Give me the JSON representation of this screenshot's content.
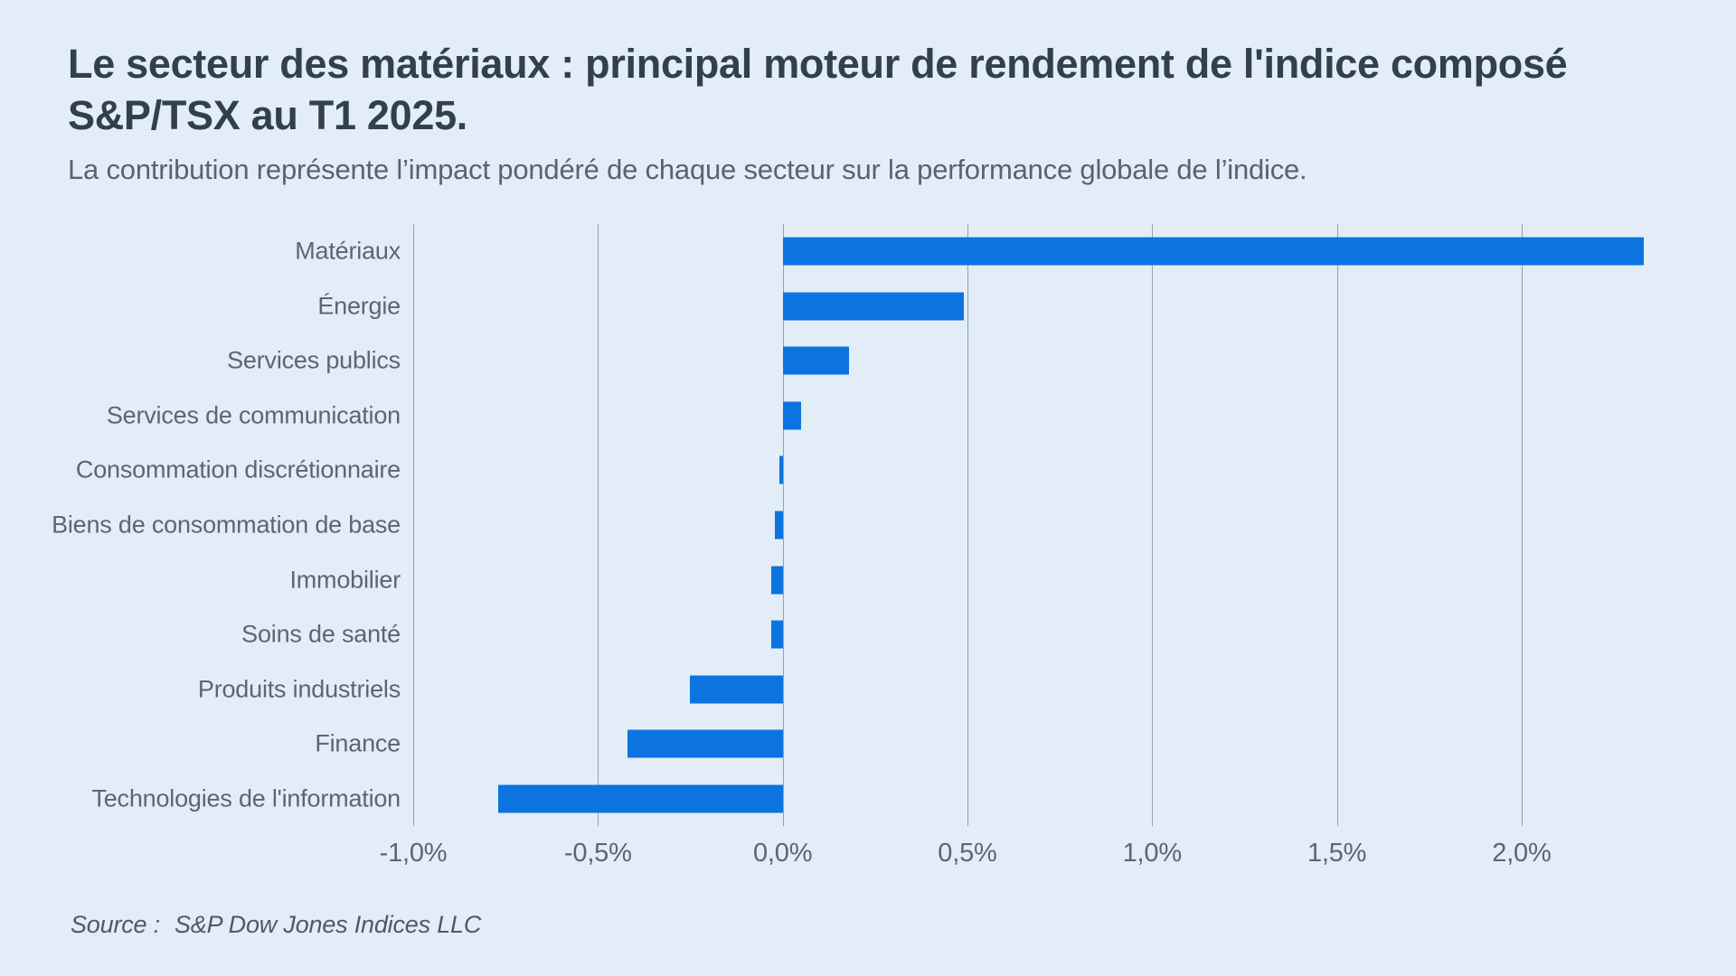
{
  "page": {
    "background_color": "#e3edf8"
  },
  "header": {
    "title_lines": [
      "Le secteur des matériaux : principal moteur de rendement de l'indice composé",
      "S&P/TSX au T1 2025."
    ],
    "subtitle": "La contribution représente l’impact pondéré de chaque secteur sur la performance globale de l’indice."
  },
  "footer": {
    "source_label": "Source :",
    "source_value": "S&P Dow Jones Indices LLC"
  },
  "chart_data": {
    "type": "bar",
    "orientation": "horizontal",
    "title": "Le secteur des matériaux : principal moteur de rendement de l'indice composé S&P/TSX au T1 2025.",
    "subtitle": "La contribution représente l’impact pondéré de chaque secteur sur la performance globale de l’indice.",
    "unit": "%",
    "categories": [
      "Matériaux",
      "Énergie",
      "Services publics",
      "Services de communication",
      "Consommation discrétionnaire",
      "Biens de consommation de base",
      "Immobilier",
      "Soins de santé",
      "Produits industriels",
      "Finance",
      "Technologies de l'information"
    ],
    "values": [
      2.33,
      0.49,
      0.18,
      0.05,
      -0.01,
      -0.02,
      -0.03,
      -0.03,
      -0.25,
      -0.42,
      -0.77
    ],
    "x_ticks": [
      {
        "value": -1.0,
        "label": "-1,0%"
      },
      {
        "value": -0.5,
        "label": "-0,5%"
      },
      {
        "value": 0.0,
        "label": "0,0%"
      },
      {
        "value": 0.5,
        "label": "0,5%"
      },
      {
        "value": 1.0,
        "label": "1,0%"
      },
      {
        "value": 1.5,
        "label": "1,5%"
      },
      {
        "value": 2.0,
        "label": "2,0%"
      }
    ],
    "xlim": [
      -1.0,
      2.47
    ],
    "grid": "vertical-only",
    "legend": "none",
    "bar_color": "#0b74e0",
    "gridline_color": "#98a0a8",
    "source": "S&P Dow Jones Indices LLC"
  }
}
